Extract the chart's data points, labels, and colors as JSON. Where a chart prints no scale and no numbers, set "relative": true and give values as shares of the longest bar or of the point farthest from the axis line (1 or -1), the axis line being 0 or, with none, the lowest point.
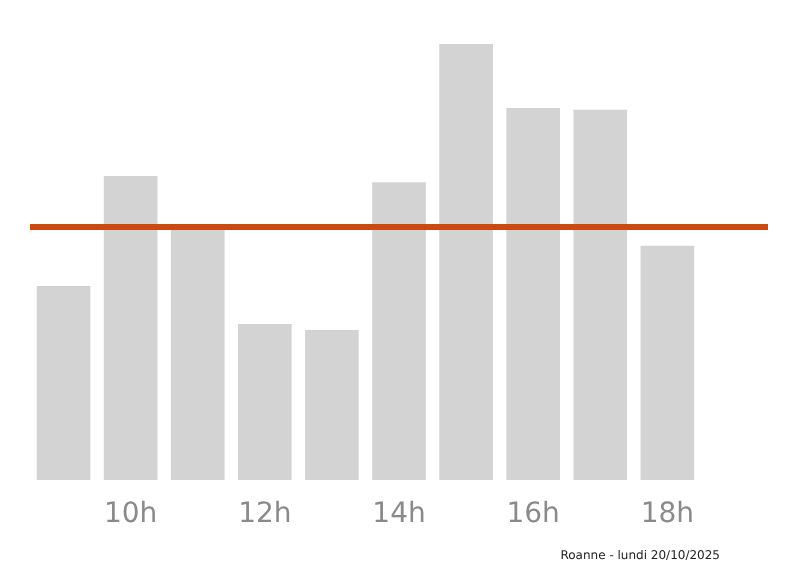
{
  "chart_data": {
    "type": "bar",
    "relative": true,
    "categories": [
      null,
      "10h",
      null,
      "12h",
      null,
      "14h",
      null,
      "16h",
      null,
      "18h",
      null
    ],
    "values": [
      0.445,
      0.697,
      0.583,
      0.358,
      0.344,
      0.683,
      1,
      0.853,
      0.849,
      0.537,
      null
    ],
    "color": "#d3d3d3",
    "ref_lines": [
      {
        "axis": "y",
        "value": 0.578,
        "label": null,
        "color": "#cc4a0c",
        "line_style": "solid"
      }
    ],
    "annotations": [
      "Roanne - lundi 20/10/2025"
    ],
    "grid": false
  }
}
